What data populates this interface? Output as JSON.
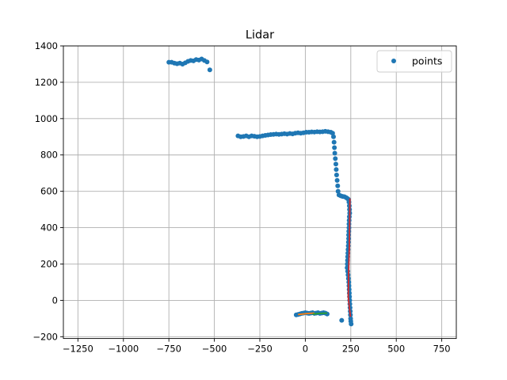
{
  "chart_data": {
    "type": "scatter",
    "title": "Lidar",
    "xlabel": "",
    "ylabel": "",
    "xlim": [
      -1330,
      830
    ],
    "ylim": [
      -210,
      1400
    ],
    "xticks": [
      -1250,
      -1000,
      -750,
      -500,
      -250,
      0,
      250,
      500,
      750
    ],
    "xtick_labels": [
      "−1250",
      "−1000",
      "−750",
      "−500",
      "−250",
      "0",
      "250",
      "500",
      "750"
    ],
    "yticks": [
      -200,
      0,
      200,
      400,
      600,
      800,
      1000,
      1200,
      1400
    ],
    "ytick_labels": [
      "−200",
      "0",
      "200",
      "400",
      "600",
      "800",
      "1000",
      "1200",
      "1400"
    ],
    "grid": true,
    "legend": {
      "position": "top-right",
      "entries": [
        "points"
      ]
    },
    "colors": {
      "points": "#1f77b4",
      "line_red": "#d62728",
      "line_orange": "#ff7f0e",
      "line_green": "#2ca02c",
      "grid": "#b0b0b0"
    },
    "series": [
      {
        "name": "points",
        "kind": "points",
        "points": [
          [
            -750,
            1310
          ],
          [
            -735,
            1310
          ],
          [
            -720,
            1305
          ],
          [
            -705,
            1302
          ],
          [
            -690,
            1305
          ],
          [
            -675,
            1300
          ],
          [
            -660,
            1307
          ],
          [
            -645,
            1315
          ],
          [
            -630,
            1320
          ],
          [
            -615,
            1318
          ],
          [
            -600,
            1325
          ],
          [
            -585,
            1322
          ],
          [
            -570,
            1328
          ],
          [
            -555,
            1320
          ],
          [
            -540,
            1312
          ],
          [
            -525,
            1268
          ],
          [
            -370,
            905
          ],
          [
            -355,
            900
          ],
          [
            -340,
            902
          ],
          [
            -325,
            905
          ],
          [
            -310,
            900
          ],
          [
            -295,
            905
          ],
          [
            -280,
            903
          ],
          [
            -265,
            900
          ],
          [
            -250,
            902
          ],
          [
            -235,
            905
          ],
          [
            -220,
            908
          ],
          [
            -205,
            910
          ],
          [
            -190,
            912
          ],
          [
            -175,
            913
          ],
          [
            -160,
            915
          ],
          [
            -145,
            913
          ],
          [
            -130,
            915
          ],
          [
            -115,
            917
          ],
          [
            -100,
            915
          ],
          [
            -85,
            918
          ],
          [
            -70,
            916
          ],
          [
            -55,
            920
          ],
          [
            -40,
            922
          ],
          [
            -25,
            920
          ],
          [
            -10,
            922
          ],
          [
            5,
            925
          ],
          [
            20,
            925
          ],
          [
            35,
            927
          ],
          [
            50,
            926
          ],
          [
            65,
            928
          ],
          [
            80,
            927
          ],
          [
            95,
            928
          ],
          [
            110,
            930
          ],
          [
            125,
            928
          ],
          [
            140,
            925
          ],
          [
            150,
            920
          ],
          [
            155,
            900
          ],
          [
            158,
            870
          ],
          [
            160,
            840
          ],
          [
            162,
            810
          ],
          [
            165,
            780
          ],
          [
            168,
            750
          ],
          [
            170,
            720
          ],
          [
            172,
            690
          ],
          [
            175,
            660
          ],
          [
            178,
            630
          ],
          [
            180,
            600
          ],
          [
            185,
            580
          ],
          [
            195,
            575
          ],
          [
            205,
            572
          ],
          [
            215,
            570
          ],
          [
            225,
            565
          ],
          [
            232,
            560
          ],
          [
            238,
            555
          ],
          [
            240,
            540
          ],
          [
            242,
            520
          ],
          [
            243,
            500
          ],
          [
            244,
            480
          ],
          [
            242,
            460
          ],
          [
            241,
            440
          ],
          [
            240,
            420
          ],
          [
            240,
            400
          ],
          [
            239,
            380
          ],
          [
            238,
            360
          ],
          [
            238,
            340
          ],
          [
            237,
            320
          ],
          [
            236,
            300
          ],
          [
            235,
            280
          ],
          [
            234,
            260
          ],
          [
            233,
            240
          ],
          [
            232,
            220
          ],
          [
            231,
            200
          ],
          [
            230,
            180
          ],
          [
            233,
            160
          ],
          [
            235,
            140
          ],
          [
            237,
            120
          ],
          [
            239,
            100
          ],
          [
            240,
            80
          ],
          [
            241,
            60
          ],
          [
            242,
            40
          ],
          [
            243,
            20
          ],
          [
            244,
            0
          ],
          [
            245,
            -20
          ],
          [
            246,
            -40
          ],
          [
            247,
            -60
          ],
          [
            248,
            -80
          ],
          [
            249,
            -100
          ],
          [
            250,
            -115
          ],
          [
            252,
            -130
          ],
          [
            200,
            -110
          ],
          [
            -50,
            -80
          ],
          [
            -40,
            -78
          ],
          [
            -30,
            -75
          ],
          [
            -20,
            -72
          ],
          [
            -10,
            -70
          ],
          [
            0,
            -68
          ],
          [
            10,
            -70
          ],
          [
            20,
            -72
          ],
          [
            30,
            -70
          ],
          [
            40,
            -68
          ],
          [
            50,
            -72
          ],
          [
            60,
            -70
          ],
          [
            70,
            -68
          ],
          [
            80,
            -72
          ],
          [
            90,
            -70
          ],
          [
            100,
            -68
          ],
          [
            110,
            -70
          ],
          [
            120,
            -75
          ]
        ]
      },
      {
        "kind": "line",
        "color": "#d62728",
        "points": [
          [
            245,
            560
          ],
          [
            242,
            300
          ],
          [
            238,
            150
          ],
          [
            236,
            20
          ],
          [
            242,
            -40
          ],
          [
            248,
            -90
          ]
        ]
      },
      {
        "kind": "line",
        "color": "#ff7f0e",
        "points": [
          [
            -40,
            -78
          ],
          [
            20,
            -72
          ],
          [
            50,
            -70
          ]
        ]
      },
      {
        "kind": "line",
        "color": "#2ca02c",
        "points": [
          [
            40,
            -76
          ],
          [
            80,
            -72
          ],
          [
            120,
            -70
          ]
        ]
      }
    ]
  }
}
